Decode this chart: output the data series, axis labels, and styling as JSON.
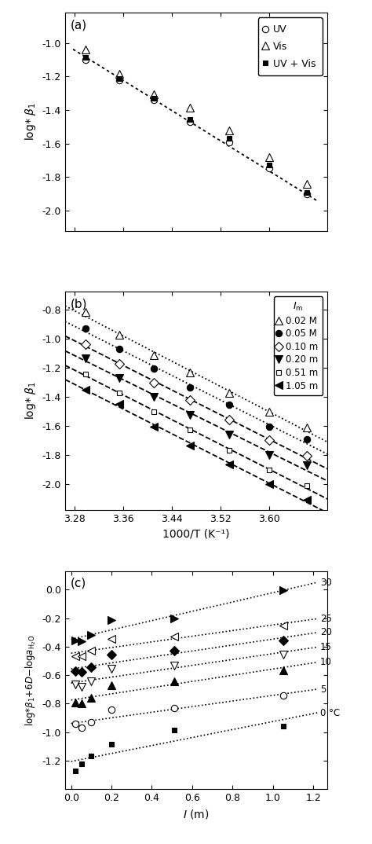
{
  "panel_a": {
    "title_label": "(a)",
    "ylabel": "log* β₁",
    "xlim": [
      3.265,
      3.695
    ],
    "ylim": [
      -2.12,
      -0.82
    ],
    "xticks": [
      3.28,
      3.36,
      3.44,
      3.52,
      3.6
    ],
    "yticks": [
      -2.0,
      -1.8,
      -1.6,
      -1.4,
      -1.2,
      -1.0
    ],
    "series": [
      {
        "label": "UV",
        "marker": "o",
        "mfc": "white",
        "mec": "black",
        "x": [
          3.299,
          3.354,
          3.411,
          3.47,
          3.534,
          3.599,
          3.661
        ],
        "y": [
          -1.1,
          -1.22,
          -1.34,
          -1.47,
          -1.59,
          -1.745,
          -1.9
        ]
      },
      {
        "label": "Vis",
        "marker": "^",
        "mfc": "white",
        "mec": "black",
        "x": [
          3.299,
          3.354,
          3.411,
          3.47,
          3.534,
          3.599,
          3.661
        ],
        "y": [
          -1.04,
          -1.185,
          -1.305,
          -1.385,
          -1.52,
          -1.68,
          -1.84
        ]
      },
      {
        "label": "UV + Vis",
        "marker": "s",
        "mfc": "black",
        "mec": "black",
        "x": [
          3.299,
          3.354,
          3.411,
          3.47,
          3.534,
          3.599,
          3.661
        ],
        "y": [
          -1.085,
          -1.215,
          -1.33,
          -1.455,
          -1.57,
          -1.73,
          -1.89
        ]
      }
    ],
    "fit_x": [
      3.278,
      3.68
    ],
    "fit_y": [
      -1.038,
      -1.945
    ]
  },
  "panel_b": {
    "title_label": "(b)",
    "ylabel": "log* β₁",
    "xlabel": "1000/T (K⁻¹)",
    "xlim": [
      3.265,
      3.695
    ],
    "ylim": [
      -2.18,
      -0.68
    ],
    "xticks": [
      3.28,
      3.36,
      3.44,
      3.52,
      3.6
    ],
    "yticks": [
      -2.0,
      -1.8,
      -1.6,
      -1.4,
      -1.2,
      -1.0,
      -0.8
    ],
    "series": [
      {
        "label": "0.02 M",
        "marker": "^",
        "mfc": "white",
        "mec": "black",
        "linestyle": "dotted",
        "x": [
          3.299,
          3.354,
          3.411,
          3.47,
          3.534,
          3.599,
          3.661
        ],
        "y": [
          -0.82,
          -0.975,
          -1.115,
          -1.235,
          -1.375,
          -1.505,
          -1.615
        ]
      },
      {
        "label": "0.05 M",
        "marker": "o",
        "mfc": "black",
        "mec": "black",
        "linestyle": "dotted",
        "x": [
          3.299,
          3.354,
          3.411,
          3.47,
          3.534,
          3.599,
          3.661
        ],
        "y": [
          -0.93,
          -1.075,
          -1.21,
          -1.335,
          -1.455,
          -1.61,
          -1.695
        ]
      },
      {
        "label": "0.10 m",
        "marker": "D",
        "mfc": "white",
        "mec": "black",
        "linestyle": "dashed",
        "x": [
          3.299,
          3.354,
          3.411,
          3.47,
          3.534,
          3.599,
          3.661
        ],
        "y": [
          -1.04,
          -1.175,
          -1.305,
          -1.425,
          -1.56,
          -1.7,
          -1.81
        ]
      },
      {
        "label": "0.20 m",
        "marker": "v",
        "mfc": "black",
        "mec": "black",
        "linestyle": "dashed",
        "x": [
          3.299,
          3.354,
          3.411,
          3.47,
          3.534,
          3.599,
          3.661
        ],
        "y": [
          -1.135,
          -1.27,
          -1.4,
          -1.525,
          -1.66,
          -1.8,
          -1.875
        ]
      },
      {
        "label": "0.51 m",
        "marker": "s",
        "mfc": "white",
        "mec": "black",
        "linestyle": "dashed",
        "x": [
          3.299,
          3.354,
          3.411,
          3.47,
          3.534,
          3.599,
          3.661
        ],
        "y": [
          -1.245,
          -1.375,
          -1.505,
          -1.63,
          -1.77,
          -1.905,
          -2.015
        ]
      },
      {
        "label": "1.05 m",
        "marker": "<",
        "mfc": "black",
        "mec": "black",
        "linestyle": "dashed",
        "x": [
          3.299,
          3.354,
          3.411,
          3.47,
          3.534,
          3.599,
          3.661
        ],
        "y": [
          -1.355,
          -1.45,
          -1.605,
          -1.735,
          -1.865,
          -2.0,
          -2.11
        ]
      }
    ]
  },
  "panel_c": {
    "title_label": "(c)",
    "xlabel": "I (m)",
    "xlim": [
      -0.03,
      1.27
    ],
    "ylim": [
      -1.4,
      0.13
    ],
    "xticks": [
      0.0,
      0.2,
      0.4,
      0.6,
      0.8,
      1.0,
      1.2
    ],
    "yticks": [
      -1.2,
      -1.0,
      -0.8,
      -0.6,
      -0.4,
      -0.2,
      0.0
    ],
    "series": [
      {
        "label": "30",
        "marker": ">",
        "mfc": "black",
        "mec": "black",
        "x": [
          0.02,
          0.05,
          0.1,
          0.2,
          0.51,
          1.05
        ],
        "y": [
          -0.355,
          -0.36,
          -0.32,
          -0.215,
          -0.205,
          -0.005
        ]
      },
      {
        "label": "25",
        "marker": "<",
        "mfc": "white",
        "mec": "black",
        "x": [
          0.02,
          0.05,
          0.1,
          0.2,
          0.51,
          1.05
        ],
        "y": [
          -0.465,
          -0.47,
          -0.43,
          -0.345,
          -0.33,
          -0.255
        ]
      },
      {
        "label": "20",
        "marker": "D",
        "mfc": "black",
        "mec": "black",
        "x": [
          0.02,
          0.05,
          0.1,
          0.2,
          0.51,
          1.05
        ],
        "y": [
          -0.57,
          -0.58,
          -0.545,
          -0.455,
          -0.43,
          -0.355
        ]
      },
      {
        "label": "15",
        "marker": "v",
        "mfc": "white",
        "mec": "black",
        "x": [
          0.02,
          0.05,
          0.1,
          0.2,
          0.51,
          1.05
        ],
        "y": [
          -0.665,
          -0.68,
          -0.645,
          -0.555,
          -0.535,
          -0.455
        ]
      },
      {
        "label": "10",
        "marker": "^",
        "mfc": "black",
        "mec": "black",
        "x": [
          0.02,
          0.05,
          0.1,
          0.2,
          0.51,
          1.05
        ],
        "y": [
          -0.79,
          -0.8,
          -0.76,
          -0.67,
          -0.645,
          -0.565
        ]
      },
      {
        "label": "5",
        "marker": "o",
        "mfc": "white",
        "mec": "black",
        "x": [
          0.02,
          0.05,
          0.1,
          0.2,
          0.51,
          1.05
        ],
        "y": [
          -0.94,
          -0.97,
          -0.93,
          -0.84,
          -0.83,
          -0.745
        ]
      },
      {
        "label": "0 °C",
        "marker": "s",
        "mfc": "black",
        "mec": "black",
        "x": [
          0.02,
          0.05,
          0.1,
          0.2,
          0.51,
          1.05
        ],
        "y": [
          -1.27,
          -1.225,
          -1.17,
          -1.085,
          -0.985,
          -0.96
        ]
      }
    ]
  }
}
